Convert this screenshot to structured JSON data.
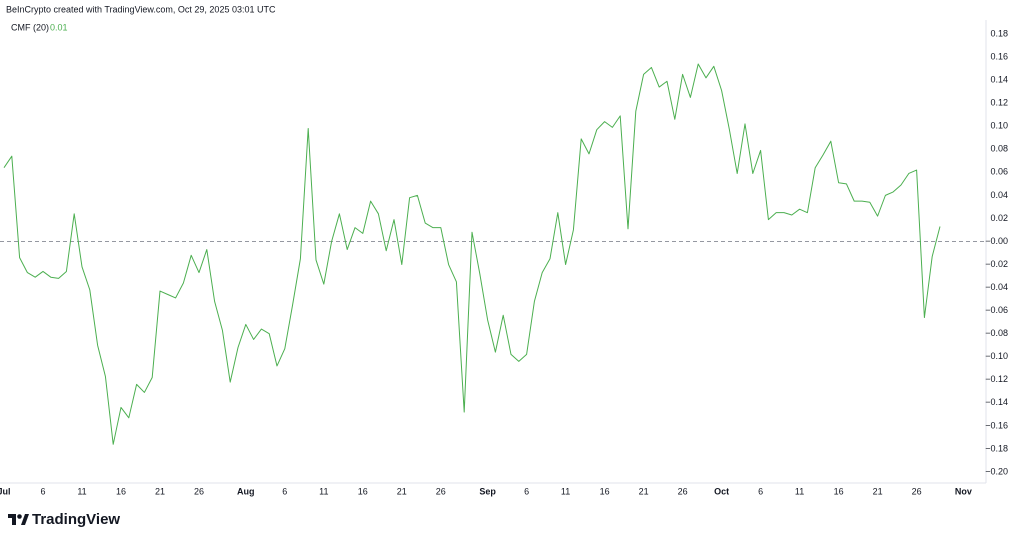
{
  "source": "BeInCrypto created with TradingView.com, Oct 29, 2025 03:01 UTC",
  "brand": "TradingView",
  "chart_data": {
    "type": "line",
    "categories": [
      "Jul",
      null,
      null,
      null,
      null,
      "6",
      null,
      null,
      null,
      null,
      "11",
      null,
      null,
      null,
      null,
      "16",
      null,
      null,
      null,
      null,
      "21",
      null,
      null,
      null,
      null,
      "26",
      null,
      null,
      null,
      null,
      null,
      "Aug",
      null,
      null,
      null,
      null,
      "6",
      null,
      null,
      null,
      null,
      "11",
      null,
      null,
      null,
      null,
      "16",
      null,
      null,
      null,
      null,
      "21",
      null,
      null,
      null,
      null,
      "26",
      null,
      null,
      null,
      null,
      null,
      "Sep",
      null,
      null,
      null,
      null,
      "6",
      null,
      null,
      null,
      null,
      "11",
      null,
      null,
      null,
      null,
      "16",
      null,
      null,
      null,
      null,
      "21",
      null,
      null,
      null,
      null,
      "26",
      null,
      null,
      null,
      null,
      "Oct",
      null,
      null,
      null,
      null,
      "6",
      null,
      null,
      null,
      null,
      "11",
      null,
      null,
      null,
      null,
      "16",
      null,
      null,
      null,
      null,
      "21",
      null,
      null,
      null,
      null,
      "26",
      null,
      null,
      null,
      null,
      null,
      "Nov"
    ],
    "series": [
      {
        "name": "CMF (20)",
        "color": "#4caf50",
        "last_value": 0.01,
        "values": [
          0.064,
          0.074,
          -0.014,
          -0.027,
          -0.031,
          -0.026,
          -0.031,
          -0.032,
          -0.026,
          0.024,
          -0.022,
          -0.042,
          -0.09,
          -0.117,
          -0.176,
          -0.144,
          -0.153,
          -0.124,
          -0.131,
          -0.118,
          -0.043,
          -0.046,
          -0.049,
          -0.036,
          -0.012,
          -0.027,
          -0.007,
          -0.052,
          -0.077,
          -0.122,
          -0.092,
          -0.072,
          -0.085,
          -0.076,
          -0.08,
          -0.108,
          -0.093,
          -0.055,
          -0.015,
          0.098,
          -0.016,
          -0.037,
          0.0,
          0.024,
          -0.007,
          0.012,
          0.007,
          0.035,
          0.024,
          -0.008,
          0.019,
          -0.02,
          0.038,
          0.04,
          0.016,
          0.012,
          0.012,
          -0.02,
          -0.035,
          -0.148,
          0.008,
          -0.028,
          -0.068,
          -0.096,
          -0.064,
          -0.098,
          -0.104,
          -0.098,
          -0.052,
          -0.027,
          -0.015,
          0.025,
          -0.02,
          0.01,
          0.089,
          0.076,
          0.097,
          0.104,
          0.099,
          0.109,
          0.011,
          0.113,
          0.145,
          0.151,
          0.134,
          0.139,
          0.106,
          0.145,
          0.125,
          0.154,
          0.142,
          0.152,
          0.131,
          0.097,
          0.059,
          0.102,
          0.059,
          0.079,
          0.019,
          0.025,
          0.025,
          0.023,
          0.028,
          0.025,
          0.064,
          0.075,
          0.087,
          0.051,
          0.05,
          0.035,
          0.035,
          0.034,
          0.022,
          0.04,
          0.043,
          0.049,
          0.059,
          0.062,
          -0.066,
          -0.013,
          0.013,
          null,
          null,
          null
        ]
      }
    ],
    "ylim": [
      -0.21,
      0.19
    ],
    "yticks": [
      {
        "value": 0.18,
        "label": "0.18"
      },
      {
        "value": 0.16,
        "label": "0.16"
      },
      {
        "value": 0.14,
        "label": "0.14"
      },
      {
        "value": 0.12,
        "label": "0.12"
      },
      {
        "value": 0.1,
        "label": "0.10"
      },
      {
        "value": 0.08,
        "label": "0.08"
      },
      {
        "value": 0.06,
        "label": "0.06"
      },
      {
        "value": 0.04,
        "label": "0.04"
      },
      {
        "value": 0.02,
        "label": "0.02"
      },
      {
        "value": 0,
        "label": "−0.00"
      },
      {
        "value": -0.02,
        "label": "−0.02"
      },
      {
        "value": -0.04,
        "label": "−0.04"
      },
      {
        "value": -0.06,
        "label": "−0.06"
      },
      {
        "value": -0.08,
        "label": "−0.08"
      },
      {
        "value": -0.1,
        "label": "−0.10"
      },
      {
        "value": -0.12,
        "label": "−0.12"
      },
      {
        "value": -0.14,
        "label": "−0.14"
      },
      {
        "value": -0.16,
        "label": "−0.16"
      },
      {
        "value": -0.18,
        "label": "−0.18"
      },
      {
        "value": -0.2,
        "label": "−0.20"
      }
    ],
    "zero_line": true,
    "grid": false
  }
}
